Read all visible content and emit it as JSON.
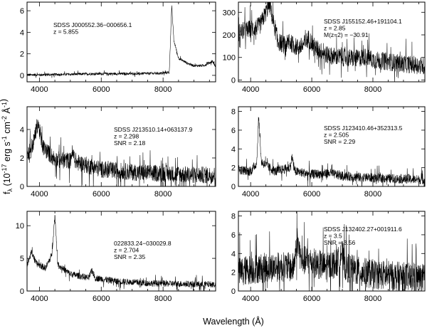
{
  "figure": {
    "xlabel": "Wavelength (Å)",
    "ylabel": "f_λ (10^-17 erg s^-1 cm^-2 Å^-1)"
  },
  "chart_data": [
    {
      "type": "line",
      "panel": "top-left",
      "xlim": [
        3600,
        9700
      ],
      "ylim": [
        -0.6,
        6.8
      ],
      "x_ticks": [
        4000,
        6000,
        8000
      ],
      "y_ticks": [
        0,
        2,
        4,
        6
      ],
      "annotation": [
        "SDSS J000552.36−000656.1",
        "z = 5.855"
      ],
      "series": [
        {
          "noise": 0.12,
          "values": [
            [
              3600,
              0.05
            ],
            [
              4000,
              0.05
            ],
            [
              5000,
              0.1
            ],
            [
              6000,
              0.15
            ],
            [
              7000,
              0.15
            ],
            [
              8000,
              0.2
            ],
            [
              8200,
              0.3
            ],
            [
              8280,
              6.4
            ],
            [
              8350,
              3.2
            ],
            [
              8500,
              1.6
            ],
            [
              8800,
              1.1
            ],
            [
              9000,
              0.9
            ],
            [
              9300,
              0.9
            ],
            [
              9600,
              1.3
            ],
            [
              9700,
              0.8
            ]
          ]
        }
      ]
    },
    {
      "type": "line",
      "panel": "top-right",
      "xlim": [
        3600,
        9700
      ],
      "ylim": [
        -8,
        345
      ],
      "x_ticks": [
        4000,
        6000,
        8000
      ],
      "y_ticks": [
        0,
        100,
        200,
        300
      ],
      "annotation": [
        "SDSS J155152.46+191104.1",
        "z = 2.85",
        "M(z=2) = −30.91"
      ],
      "series": [
        {
          "noise": 40,
          "values": [
            [
              3600,
              210
            ],
            [
              3800,
              220
            ],
            [
              4100,
              230
            ],
            [
              4300,
              240
            ],
            [
              4500,
              300
            ],
            [
              4620,
              340
            ],
            [
              4700,
              280
            ],
            [
              4900,
              170
            ],
            [
              5100,
              155
            ],
            [
              5300,
              165
            ],
            [
              5500,
              145
            ],
            [
              5700,
              150
            ],
            [
              5900,
              185
            ],
            [
              6100,
              145
            ],
            [
              6500,
              110
            ],
            [
              7000,
              100
            ],
            [
              7500,
              95
            ],
            [
              7800,
              105
            ],
            [
              8000,
              90
            ],
            [
              9000,
              72
            ],
            [
              9700,
              62
            ]
          ]
        }
      ]
    },
    {
      "type": "line",
      "panel": "middle-left",
      "xlim": [
        3600,
        9700
      ],
      "ylim": [
        0,
        5.6
      ],
      "x_ticks": [
        4000,
        6000,
        8000
      ],
      "y_ticks": [
        0,
        2,
        4
      ],
      "annotation": [
        "SDSS J213510.14+063137.9",
        "z = 2.298",
        "SNR = 2.18"
      ],
      "series": [
        {
          "noise": 0.6,
          "values": [
            [
              3600,
              2.2
            ],
            [
              3800,
              3.0
            ],
            [
              3950,
              4.5
            ],
            [
              4100,
              2.8
            ],
            [
              4500,
              1.9
            ],
            [
              5000,
              1.8
            ],
            [
              5050,
              2.4
            ],
            [
              5200,
              1.7
            ],
            [
              6000,
              1.2
            ],
            [
              7000,
              1.0
            ],
            [
              8000,
              0.9
            ],
            [
              9000,
              0.8
            ],
            [
              9700,
              0.8
            ]
          ]
        }
      ]
    },
    {
      "type": "line",
      "panel": "middle-right",
      "xlim": [
        3600,
        9700
      ],
      "ylim": [
        0,
        8.5
      ],
      "x_ticks": [
        4000,
        6000,
        8000
      ],
      "y_ticks": [
        0,
        2,
        4,
        6,
        8
      ],
      "annotation": [
        "SDSS J123410.46+352313.5",
        "z = 2.505",
        "SNR = 2.29"
      ],
      "series": [
        {
          "noise": 0.5,
          "values": [
            [
              3600,
              1.8
            ],
            [
              4000,
              1.6
            ],
            [
              4200,
              2.5
            ],
            [
              4260,
              7.5
            ],
            [
              4350,
              2.6
            ],
            [
              4800,
              1.6
            ],
            [
              5300,
              2.0
            ],
            [
              5350,
              3.2
            ],
            [
              5450,
              1.6
            ],
            [
              6000,
              1.3
            ],
            [
              6600,
              1.4
            ],
            [
              7000,
              1.1
            ],
            [
              8000,
              0.9
            ],
            [
              9000,
              0.8
            ],
            [
              9700,
              0.7
            ]
          ]
        }
      ]
    },
    {
      "type": "line",
      "panel": "bottom-left",
      "xlim": [
        3600,
        9700
      ],
      "ylim": [
        0,
        12.2
      ],
      "x_ticks": [
        4000,
        6000,
        8000
      ],
      "y_ticks": [
        0,
        5,
        10
      ],
      "annotation": [
        "022833.24−030029.8",
        "z = 2.704",
        "SNR = 2.35"
      ],
      "series": [
        {
          "noise": 0.5,
          "values": [
            [
              3600,
              4.0
            ],
            [
              3750,
              6.0
            ],
            [
              3900,
              4.2
            ],
            [
              4200,
              3.5
            ],
            [
              4400,
              5.5
            ],
            [
              4500,
              11.5
            ],
            [
              4600,
              4.0
            ],
            [
              5000,
              2.6
            ],
            [
              5600,
              2.0
            ],
            [
              5700,
              3.2
            ],
            [
              5800,
              2.0
            ],
            [
              6500,
              1.5
            ],
            [
              7500,
              1.2
            ],
            [
              8500,
              1.1
            ],
            [
              9700,
              1.0
            ]
          ]
        }
      ]
    },
    {
      "type": "line",
      "panel": "bottom-right",
      "xlim": [
        3600,
        9700
      ],
      "ylim": [
        0,
        8.5
      ],
      "x_ticks": [
        4000,
        6000,
        8000
      ],
      "y_ticks": [
        0,
        2,
        4,
        6,
        8
      ],
      "annotation": [
        "SDSS J132402.27+001911.6",
        "z = 3.5",
        "SNR = 3.56"
      ],
      "series": [
        {
          "noise": 1.6,
          "values": [
            [
              3600,
              2.0
            ],
            [
              4000,
              2.3
            ],
            [
              4500,
              2.5
            ],
            [
              5000,
              2.6
            ],
            [
              5400,
              2.5
            ],
            [
              5470,
              4.0
            ],
            [
              5520,
              5.6
            ],
            [
              5650,
              3.3
            ],
            [
              6000,
              3.1
            ],
            [
              6500,
              2.5
            ],
            [
              6900,
              3.2
            ],
            [
              6950,
              4.4
            ],
            [
              7100,
              2.6
            ],
            [
              7500,
              2.1
            ],
            [
              8000,
              1.8
            ],
            [
              9000,
              1.5
            ],
            [
              9700,
              1.3
            ]
          ]
        }
      ]
    }
  ]
}
